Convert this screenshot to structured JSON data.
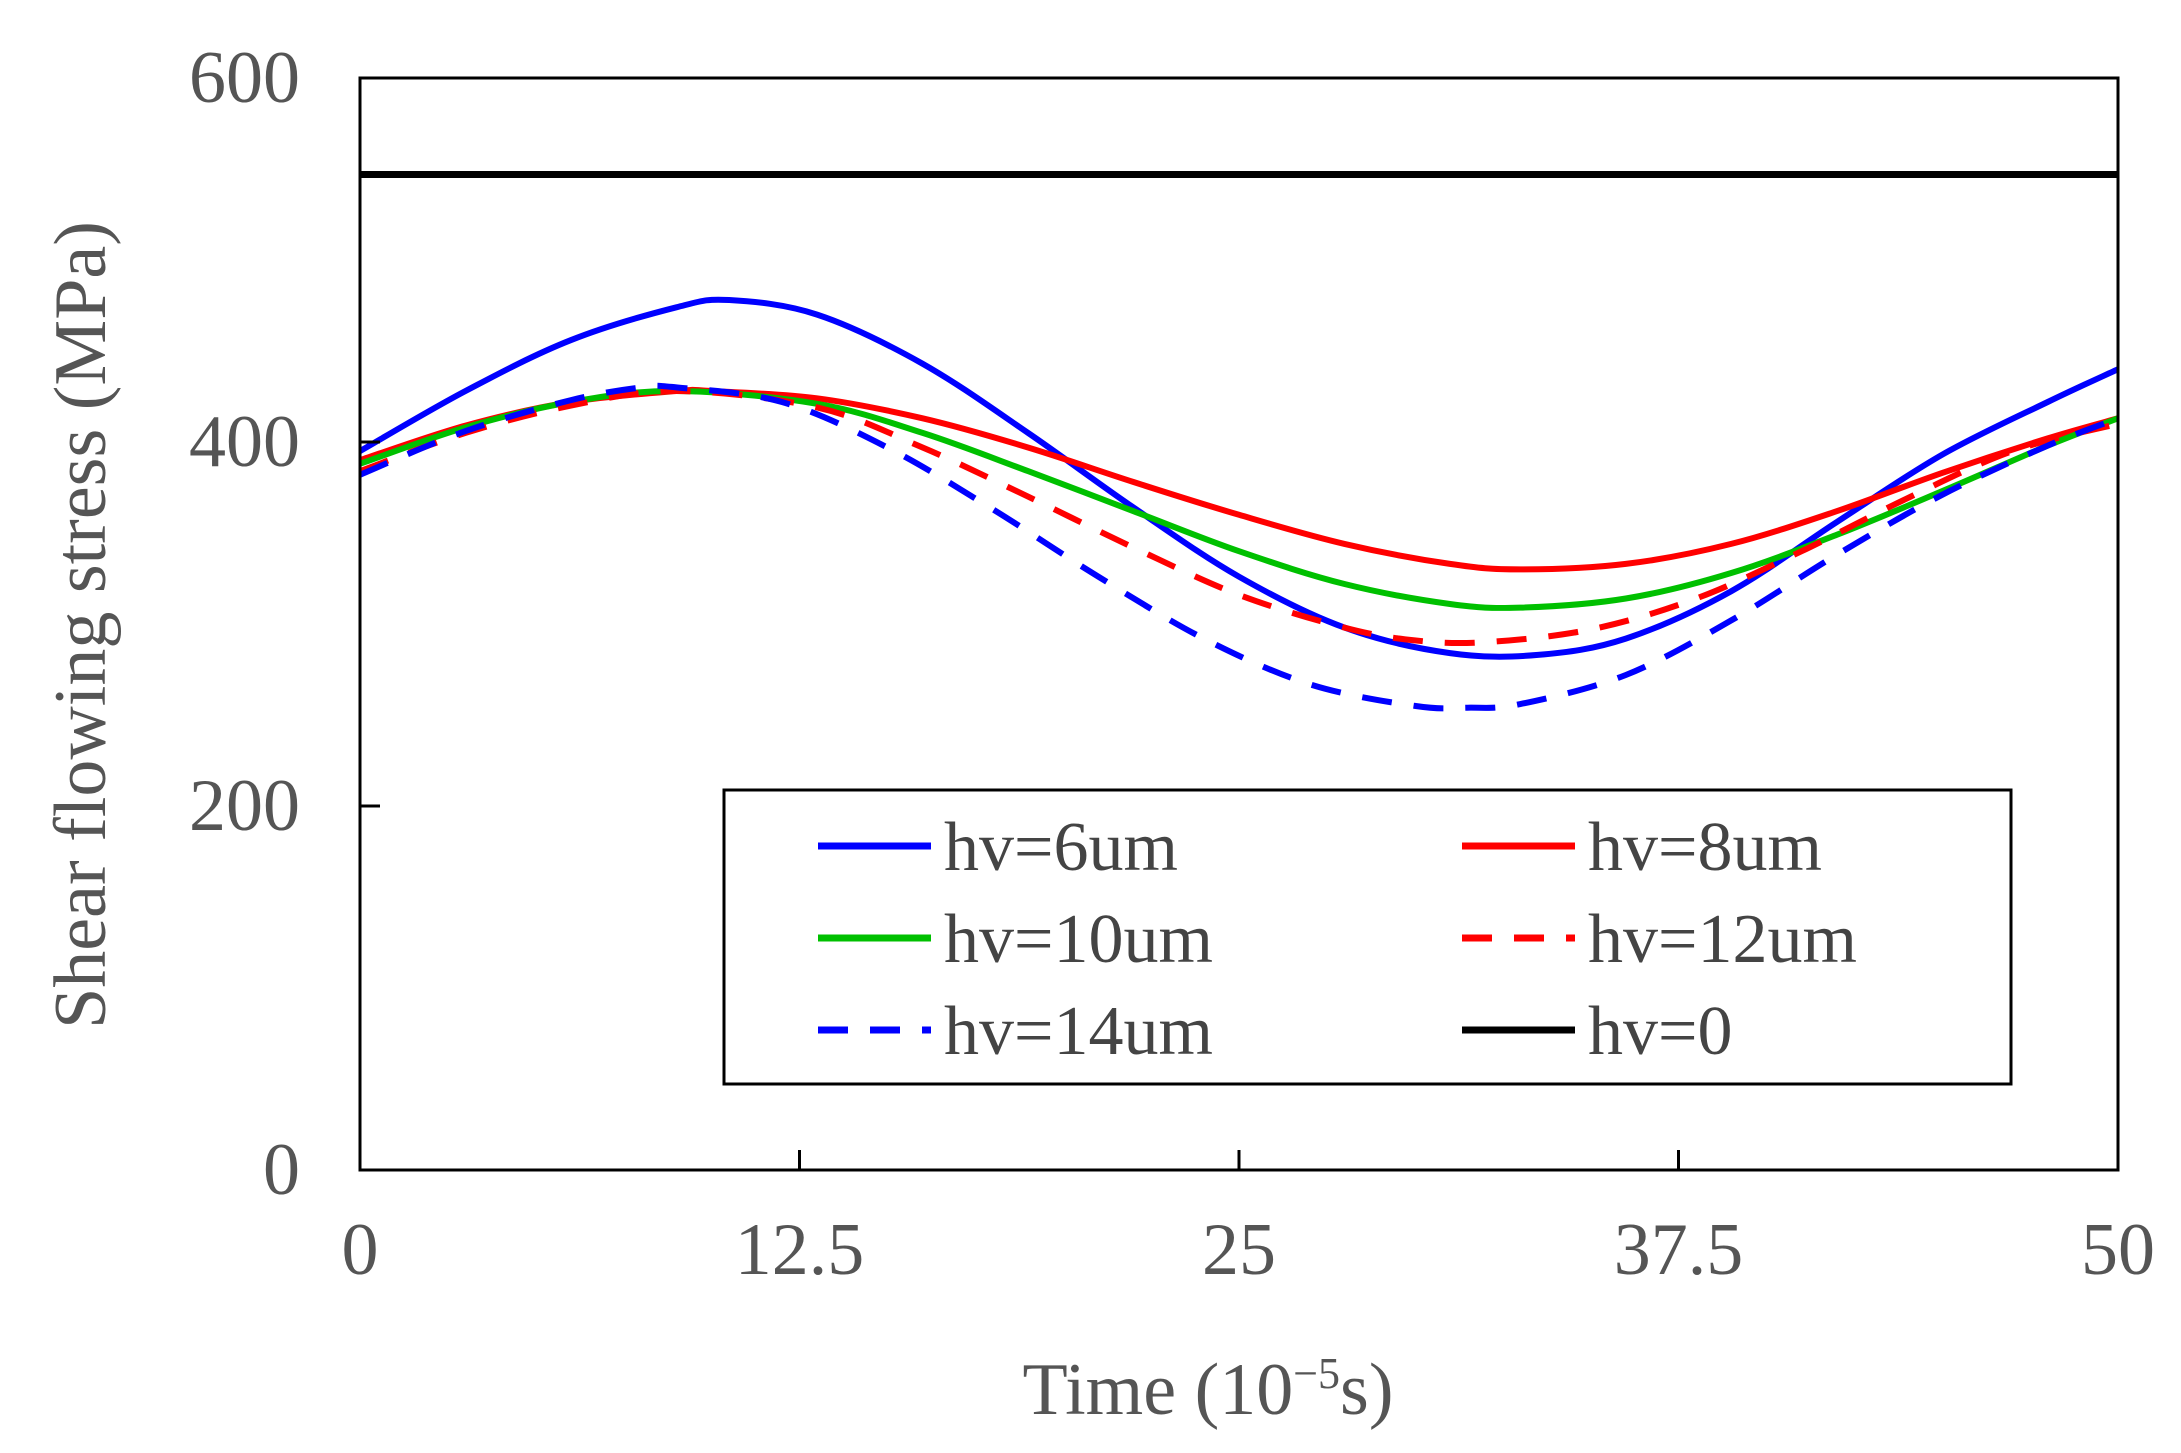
{
  "chart_data": {
    "type": "line",
    "title": "",
    "xlabel": "Time (10",
    "xlabel_exponent": "−5",
    "xlabel_suffix": "s)",
    "ylabel": "Shear flowing stress (MPa)",
    "xlim": [
      0,
      50
    ],
    "ylim": [
      0,
      600
    ],
    "x_ticks": [
      "0",
      "12.5",
      "25",
      "37.5",
      "50"
    ],
    "y_ticks": [
      "0",
      "200",
      "400",
      "600"
    ],
    "grid": false,
    "legend_position": "bottom-right",
    "series": [
      {
        "name": "hv=6um",
        "color": "#0000ff",
        "dash": "solid",
        "x": [
          0,
          3,
          6,
          9,
          10.5,
          13,
          16,
          19,
          22,
          25,
          28,
          31,
          33.5,
          36,
          39,
          42,
          45,
          48,
          50
        ],
        "values": [
          395,
          428,
          456,
          474,
          478,
          470,
          443,
          405,
          364,
          326,
          298,
          284,
          283,
          292,
          318,
          356,
          393,
          422,
          440
        ]
      },
      {
        "name": "hv=8um",
        "color": "#ff0000",
        "dash": "solid",
        "x": [
          0,
          3,
          6,
          9,
          10,
          13,
          16,
          19,
          22,
          25,
          28,
          31,
          33,
          36,
          39,
          42,
          45,
          48,
          50
        ],
        "values": [
          390,
          409,
          422,
          428,
          428,
          424,
          413,
          397,
          378,
          360,
          344,
          333,
          330,
          333,
          344,
          362,
          383,
          402,
          413
        ]
      },
      {
        "name": "hv=10um",
        "color": "#00c000",
        "dash": "solid",
        "x": [
          0,
          3,
          6,
          9,
          13,
          16,
          19,
          22,
          25,
          28,
          31,
          33,
          36,
          39,
          42,
          45,
          48,
          50
        ],
        "values": [
          388,
          408,
          422,
          428,
          421,
          405,
          384,
          362,
          340,
          322,
          311,
          309,
          314,
          328,
          349,
          373,
          398,
          413
        ]
      },
      {
        "name": "hv=12um",
        "color": "#ff0000",
        "dash": "dashed",
        "x": [
          0,
          3,
          6,
          9,
          13,
          16,
          19,
          22,
          25,
          28,
          30,
          32,
          35,
          38,
          41,
          44,
          47,
          50
        ],
        "values": [
          384,
          405,
          420,
          428,
          419,
          397,
          370,
          342,
          316,
          298,
          291,
          290,
          297,
          314,
          340,
          369,
          395,
          410
        ]
      },
      {
        "name": "hv=14um",
        "color": "#0000ff",
        "dash": "dashed",
        "x": [
          0,
          3,
          6,
          8,
          9,
          12,
          15,
          18,
          21,
          24,
          27,
          30,
          31.5,
          33,
          36,
          39,
          42,
          45,
          48,
          50
        ],
        "values": [
          382,
          406,
          423,
          430,
          430,
          422,
          397,
          363,
          326,
          292,
          267,
          255,
          254,
          256,
          272,
          302,
          338,
          371,
          398,
          413
        ]
      },
      {
        "name": "hv=0",
        "color": "#000000",
        "dash": "solid",
        "x": [
          0,
          50
        ],
        "values": [
          547,
          547
        ]
      }
    ]
  }
}
